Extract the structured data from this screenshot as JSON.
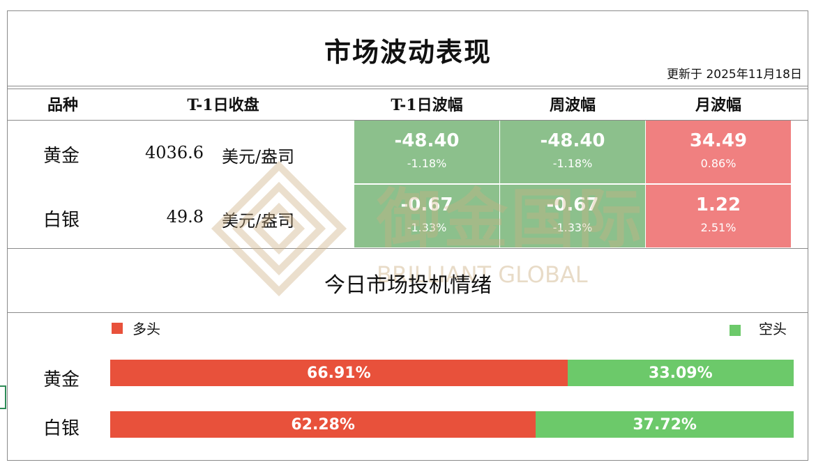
{
  "header": {
    "title": "市场波动表现",
    "updated": "更新于 2025年11月18日"
  },
  "table": {
    "columns": [
      "品种",
      "T-1日收盘",
      "T-1日波幅",
      "周波幅",
      "月波幅"
    ],
    "rows": [
      {
        "name": "黄金",
        "close": "4036.6",
        "unit": "美元/盎司",
        "t1": {
          "value": "-48.40",
          "pct": "-1.18%",
          "color": "#8cc08c"
        },
        "week": {
          "value": "-48.40",
          "pct": "-1.18%",
          "color": "#8cc08c"
        },
        "month": {
          "value": "34.49",
          "pct": "0.86%",
          "color": "#f08080"
        }
      },
      {
        "name": "白银",
        "close": "49.8",
        "unit": "美元/盎司",
        "t1": {
          "value": "-0.67",
          "pct": "-1.33%",
          "color": "#8cc08c"
        },
        "week": {
          "value": "-0.67",
          "pct": "-1.33%",
          "color": "#8cc08c"
        },
        "month": {
          "value": "1.22",
          "pct": "2.51%",
          "color": "#f08080"
        }
      }
    ]
  },
  "sentiment": {
    "title": "今日市场投机情绪",
    "legend": {
      "long_label": "多头",
      "long_color": "#e8513b",
      "short_label": "空头",
      "short_color": "#6cc96a"
    },
    "rows": [
      {
        "name": "黄金",
        "long": 66.91,
        "short": 33.09,
        "long_text": "66.91%",
        "short_text": "33.09%"
      },
      {
        "name": "白银",
        "long": 62.28,
        "short": 37.72,
        "long_text": "62.28%",
        "short_text": "37.72%"
      }
    ]
  },
  "watermark": {
    "cn": "御金国际",
    "en": "BRILLIANT GLOBAL"
  }
}
